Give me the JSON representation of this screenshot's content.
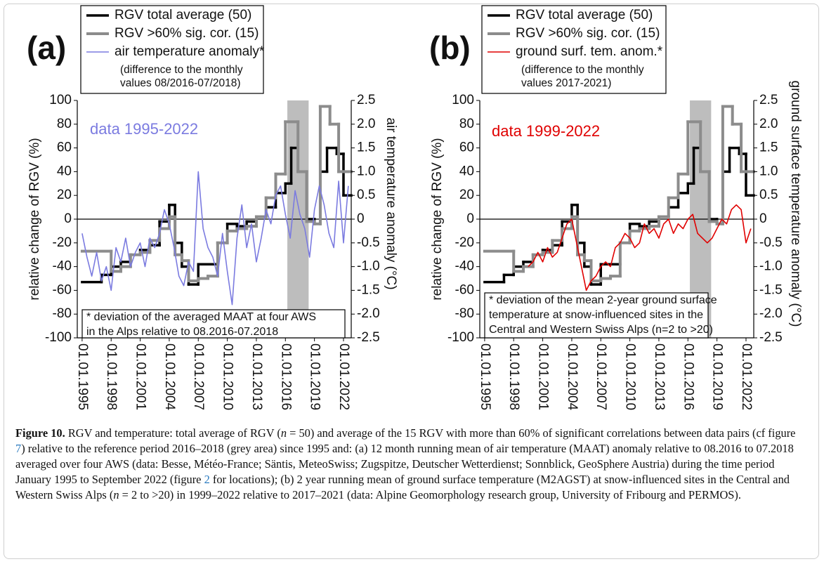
{
  "chart_data": [
    {
      "type": "line",
      "panel_label": "(a)",
      "y_label": "relative change of RGV (%)",
      "y2_label": "air temperature anomaly (°C)",
      "annotation": "data 1995-2022",
      "annotation_color": "#7b7be0",
      "legend_note": [
        "(difference to the monthly",
        "values 08/2016-07/2018)"
      ],
      "note": [
        "* deviation of the averaged MAAT at four AWS",
        "in the Alps relative to 08.2016-07.2018"
      ],
      "xlim": [
        1994.5,
        2022.8
      ],
      "xticks": [
        {
          "value": 1995,
          "label": "01.01.1995"
        },
        {
          "value": 1998,
          "label": "01.01.1998"
        },
        {
          "value": 2001,
          "label": "01.01.2001"
        },
        {
          "value": 2004,
          "label": "01.01.2004"
        },
        {
          "value": 2007,
          "label": "01.01.2007"
        },
        {
          "value": 2010,
          "label": "01.01.2010"
        },
        {
          "value": 2013,
          "label": "01.01.2013"
        },
        {
          "value": 2016,
          "label": "01.01.2016"
        },
        {
          "value": 2019,
          "label": "01.01.2019"
        },
        {
          "value": 2022,
          "label": "01.01.2022"
        }
      ],
      "ylim": [
        -100,
        100
      ],
      "yticks": [
        100,
        80,
        60,
        40,
        20,
        0,
        -20,
        -40,
        -60,
        -80,
        -100
      ],
      "y2lim": [
        -2.5,
        2.5
      ],
      "y2ticks": [
        2.5,
        {
          "value": 2,
          "label": "2.0"
        },
        1.5,
        {
          "value": 1,
          "label": "1.0"
        },
        0.5,
        0,
        -0.5,
        {
          "value": -1,
          "label": "-1.0"
        },
        -1.5,
        {
          "value": -2,
          "label": "-2.0"
        },
        -2.5
      ],
      "zero_line": true,
      "shaded_span": [
        2016.2,
        2018.4
      ],
      "shaded_color": "#bdbdbd",
      "series": [
        {
          "name": "RGV total average (50)",
          "color": "#000000",
          "style": "step",
          "line_width": 3.5,
          "x": [
            1995,
            1997,
            1998,
            1999,
            2000,
            2001,
            2002,
            2003,
            2004,
            2004.6,
            2005.3,
            2006,
            2007,
            2009,
            2010,
            2011,
            2012,
            2013,
            2014,
            2015,
            2016,
            2016.6,
            2017.3,
            2018.2,
            2019,
            2019.6,
            2020.3,
            2021.3,
            2022
          ],
          "x_end": 2022.8,
          "values": [
            -53,
            -47,
            -40,
            -36,
            -30,
            -26,
            -22,
            -2,
            12,
            -20,
            -40,
            -55,
            -38,
            -20,
            -4,
            -6,
            -2,
            2,
            10,
            22,
            30,
            60,
            40,
            0,
            -4,
            40,
            60,
            55,
            20
          ]
        },
        {
          "name": "RGV >60% sig. cor. (15)",
          "color": "#8c8c8c",
          "style": "step",
          "line_width": 4,
          "x": [
            1995,
            1998,
            1999,
            2000,
            2001,
            2002,
            2003,
            2004,
            2004.6,
            2005.3,
            2006,
            2007,
            2008,
            2009,
            2010,
            2011,
            2012,
            2013,
            2014,
            2015,
            2016,
            2017.3,
            2018.2,
            2019,
            2019.6,
            2020.6,
            2021.5,
            2022
          ],
          "x_end": 2022.8,
          "values": [
            -27,
            -44,
            -40,
            -30,
            -28,
            -18,
            -8,
            2,
            -30,
            -35,
            -52,
            -50,
            -48,
            -20,
            -10,
            -8,
            -6,
            2,
            18,
            38,
            82,
            40,
            -2,
            -4,
            95,
            80,
            40,
            40
          ]
        },
        {
          "name": "air temperature anomaly*",
          "color": "#7b7be0",
          "style": "line",
          "line_width": 1.6,
          "axis": "y2",
          "x": [
            1995,
            1995.5,
            1996,
            1996.5,
            1997,
            1997.5,
            1998,
            1998.5,
            1999,
            1999.5,
            2000,
            2000.5,
            2001,
            2001.5,
            2002,
            2002.5,
            2003,
            2003.5,
            2004,
            2004.5,
            2005,
            2005.5,
            2006,
            2006.5,
            2007,
            2007.5,
            2008,
            2008.5,
            2009,
            2009.5,
            2010,
            2010.5,
            2011,
            2011.5,
            2012,
            2012.5,
            2013,
            2013.5,
            2014,
            2014.5,
            2015,
            2015.5,
            2016,
            2016.5,
            2017,
            2017.5,
            2018,
            2018.5,
            2019,
            2019.5,
            2020,
            2020.5,
            2021,
            2021.5,
            2022,
            2022.5
          ],
          "values": [
            -0.3,
            -0.8,
            -1.2,
            -0.7,
            -1.3,
            -1.0,
            -1.5,
            -0.6,
            -0.9,
            -0.4,
            -1.0,
            -0.7,
            -0.5,
            -1.0,
            -0.4,
            -0.6,
            -0.3,
            0.2,
            -0.1,
            -0.6,
            -1.2,
            -1.4,
            -0.9,
            -1.1,
            1.0,
            -0.2,
            -0.6,
            -0.8,
            -1.2,
            -0.3,
            -1.1,
            -1.8,
            -0.4,
            0.3,
            -0.6,
            -0.1,
            -0.9,
            -0.4,
            0.2,
            -0.1,
            0.5,
            0.7,
            0.1,
            -0.4,
            0.6,
            0.1,
            -0.2,
            -0.8,
            0.2,
            0.7,
            0.3,
            -0.3,
            -0.6,
            0.8,
            -0.5,
            0.7
          ]
        }
      ]
    },
    {
      "type": "line",
      "panel_label": "(b)",
      "y_label": "relative change of RGV (%)",
      "y2_label": "ground surface temperature anomaly (°C)",
      "annotation": "data 1999-2022",
      "annotation_color": "#e00000",
      "legend_note": [
        "(difference to the monthly",
        "values 2017-2021)"
      ],
      "note": [
        "* deviation of the mean 2-year ground surface",
        "temperature at snow-influenced sites in the",
        "Central and Western Swiss Alps (n=2 to >20)"
      ],
      "xlim": [
        1994.5,
        2022.8
      ],
      "xticks": [
        {
          "value": 1995,
          "label": "01.01.1995"
        },
        {
          "value": 1998,
          "label": "01.01.1998"
        },
        {
          "value": 2001,
          "label": "01.01.2001"
        },
        {
          "value": 2004,
          "label": "01.01.2004"
        },
        {
          "value": 2007,
          "label": "01.01.2007"
        },
        {
          "value": 2010,
          "label": "01.01.2010"
        },
        {
          "value": 2013,
          "label": "01.01.2013"
        },
        {
          "value": 2016,
          "label": "01.01.2016"
        },
        {
          "value": 2019,
          "label": "01.01.2019"
        },
        {
          "value": 2022,
          "label": "01.01.2022"
        }
      ],
      "ylim": [
        -100,
        100
      ],
      "yticks": [
        100,
        80,
        60,
        40,
        20,
        0,
        -20,
        -40,
        -60,
        -80,
        -100
      ],
      "y2lim": [
        -2.5,
        2.5
      ],
      "y2ticks": [
        2.5,
        {
          "value": 2,
          "label": "2.0"
        },
        1.5,
        {
          "value": 1,
          "label": "1.0"
        },
        0.5,
        0,
        -0.5,
        {
          "value": -1,
          "label": "-1.0"
        },
        -1.5,
        {
          "value": -2,
          "label": "-2.0"
        },
        -2.5
      ],
      "zero_line": true,
      "shaded_span": [
        2016.2,
        2018.4
      ],
      "shaded_color": "#bdbdbd",
      "series": [
        {
          "name": "RGV total average (50)",
          "color": "#000000",
          "style": "step",
          "line_width": 3.5,
          "x": [
            1995,
            1997,
            1998,
            1999,
            2000,
            2001,
            2002,
            2003,
            2004,
            2004.6,
            2005.3,
            2006,
            2007,
            2009,
            2010,
            2011,
            2012,
            2013,
            2014,
            2015,
            2016,
            2016.6,
            2017.3,
            2018.2,
            2019,
            2019.6,
            2020.3,
            2021.3,
            2022
          ],
          "x_end": 2022.8,
          "values": [
            -53,
            -47,
            -40,
            -36,
            -30,
            -26,
            -22,
            -2,
            12,
            -20,
            -40,
            -55,
            -38,
            -20,
            -4,
            -6,
            -2,
            2,
            10,
            22,
            30,
            60,
            40,
            0,
            -4,
            40,
            60,
            55,
            20
          ]
        },
        {
          "name": "RGV >60% sig. cor. (15)",
          "color": "#8c8c8c",
          "style": "step",
          "line_width": 4,
          "x": [
            1995,
            1998,
            1999,
            2000,
            2001,
            2002,
            2003,
            2004,
            2004.6,
            2005.3,
            2006,
            2007,
            2008,
            2009,
            2010,
            2011,
            2012,
            2013,
            2014,
            2015,
            2016,
            2017.3,
            2018.2,
            2019,
            2019.6,
            2020.6,
            2021.5,
            2022
          ],
          "x_end": 2022.8,
          "values": [
            -27,
            -44,
            -40,
            -30,
            -28,
            -18,
            -8,
            2,
            -30,
            -35,
            -52,
            -50,
            -48,
            -20,
            -10,
            -8,
            -6,
            2,
            18,
            38,
            82,
            40,
            -2,
            -4,
            95,
            80,
            40,
            40
          ]
        },
        {
          "name": "ground surf. tem. anom.*",
          "color": "#e00000",
          "style": "line",
          "line_width": 1.6,
          "axis": "y2",
          "x": [
            1999.5,
            2000,
            2000.5,
            2001,
            2001.5,
            2002,
            2002.5,
            2003,
            2003.5,
            2004,
            2004.5,
            2005,
            2005.5,
            2006,
            2006.5,
            2007,
            2007.5,
            2008,
            2008.5,
            2009,
            2009.5,
            2010,
            2010.5,
            2011,
            2011.5,
            2012,
            2012.5,
            2013,
            2013.5,
            2014,
            2014.5,
            2015,
            2015.5,
            2016,
            2016.5,
            2017,
            2017.5,
            2018,
            2018.5,
            2019,
            2019.5,
            2020,
            2020.5,
            2021,
            2021.5,
            2022,
            2022.5
          ],
          "values": [
            -1.0,
            -0.9,
            -0.7,
            -0.9,
            -0.6,
            -0.8,
            -0.7,
            -0.4,
            -0.1,
            0.0,
            -0.5,
            -1.0,
            -1.5,
            -1.3,
            -1.2,
            -1.0,
            -0.9,
            -1.0,
            -0.6,
            -0.5,
            -0.3,
            -0.4,
            -0.6,
            -0.5,
            -0.1,
            -0.3,
            -0.2,
            -0.4,
            -0.1,
            0.0,
            -0.3,
            -0.1,
            -0.2,
            0.0,
            0.1,
            -0.3,
            -0.4,
            -0.5,
            -0.4,
            -0.2,
            0.0,
            -0.1,
            0.2,
            0.3,
            0.2,
            -0.5,
            -0.2
          ]
        }
      ]
    }
  ],
  "caption": {
    "label": "Figure 10.",
    "segments": [
      "RGV and temperature: total average of RGV (",
      "n",
      " = 50) and average of the 15 RGV with more than 60% of significant correlations between data pairs (cf figure ",
      "7",
      ") relative to the reference period 2016–2018 (grey area) since 1995 and: (a) 12 month running mean of air temperature (MAAT) anomaly relative to 08.2016 to 07.2018 averaged over four AWS (data: Besse, Météo-France; Säntis, MeteoSwiss; Zugspitze, Deutscher Wetterdienst; Sonnblick, GeoSphere Austria) during the time period January 1995 to September 2022 (figure ",
      "2",
      " for locations); (b) 2 year running mean of ground surface temperature (M2AGST) at snow-influenced sites in the Central and Western Swiss Alps (",
      "n",
      " = 2 to >20) in 1999–2022 relative to 2017–2021 (data: Alpine Geomorphology research group, University of Fribourg and PERMOS)."
    ]
  }
}
